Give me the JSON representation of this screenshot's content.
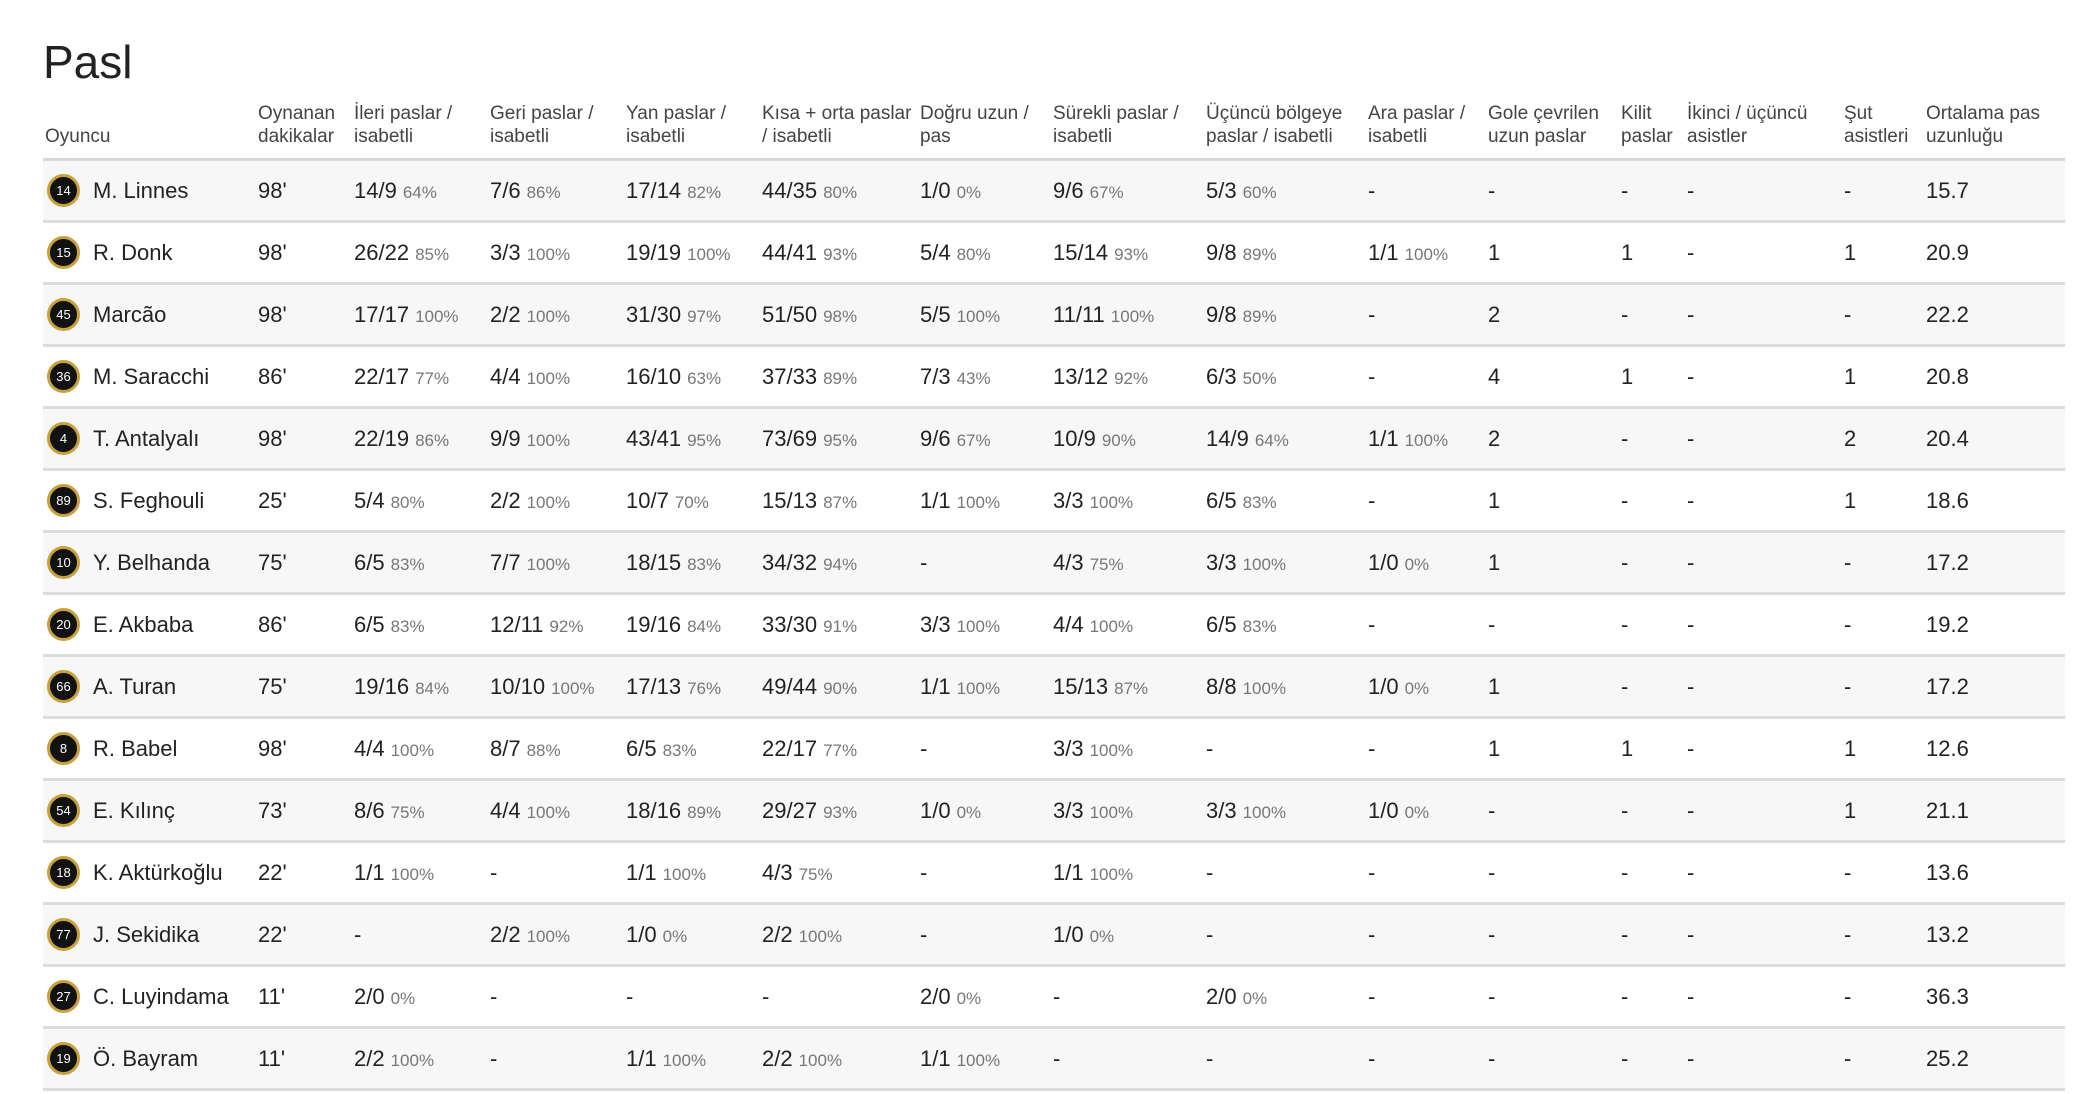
{
  "title": "Pasl",
  "columns": [
    "Oyuncu",
    "Oynanan dakikalar",
    "İleri paslar / isabetli",
    "Geri paslar / isabetli",
    "Yan paslar / isabetli",
    "Kısa + orta paslar / isabetli",
    "Doğru uzun / pas",
    "Sürekli paslar / isabetli",
    "Üçüncü bölgeye paslar / isabetli",
    "Ara paslar / isabetli",
    "Gole çevrilen uzun paslar",
    "Kilit paslar",
    "İkinci / üçüncü asistler",
    "Şut asistleri",
    "Ortalama pas uzunluğu"
  ],
  "rows": [
    {
      "num": "14",
      "name": "M. Linnes",
      "min": "98'",
      "c2": [
        "14/9",
        "64%"
      ],
      "c3": [
        "7/6",
        "86%"
      ],
      "c4": [
        "17/14",
        "82%"
      ],
      "c5": [
        "44/35",
        "80%"
      ],
      "c6": [
        "1/0",
        "0%"
      ],
      "c7": [
        "9/6",
        "67%"
      ],
      "c8": [
        "5/3",
        "60%"
      ],
      "c9": [
        "-",
        ""
      ],
      "c10": "-",
      "c11": "-",
      "c12": "-",
      "c13": "-",
      "c14": "15.7"
    },
    {
      "num": "15",
      "name": "R. Donk",
      "min": "98'",
      "c2": [
        "26/22",
        "85%"
      ],
      "c3": [
        "3/3",
        "100%"
      ],
      "c4": [
        "19/19",
        "100%"
      ],
      "c5": [
        "44/41",
        "93%"
      ],
      "c6": [
        "5/4",
        "80%"
      ],
      "c7": [
        "15/14",
        "93%"
      ],
      "c8": [
        "9/8",
        "89%"
      ],
      "c9": [
        "1/1",
        "100%"
      ],
      "c10": "1",
      "c11": "1",
      "c12": "-",
      "c13": "1",
      "c14": "20.9"
    },
    {
      "num": "45",
      "name": "Marcão",
      "min": "98'",
      "c2": [
        "17/17",
        "100%"
      ],
      "c3": [
        "2/2",
        "100%"
      ],
      "c4": [
        "31/30",
        "97%"
      ],
      "c5": [
        "51/50",
        "98%"
      ],
      "c6": [
        "5/5",
        "100%"
      ],
      "c7": [
        "11/11",
        "100%"
      ],
      "c8": [
        "9/8",
        "89%"
      ],
      "c9": [
        "-",
        ""
      ],
      "c10": "2",
      "c11": "-",
      "c12": "-",
      "c13": "-",
      "c14": "22.2"
    },
    {
      "num": "36",
      "name": "M. Saracchi",
      "min": "86'",
      "c2": [
        "22/17",
        "77%"
      ],
      "c3": [
        "4/4",
        "100%"
      ],
      "c4": [
        "16/10",
        "63%"
      ],
      "c5": [
        "37/33",
        "89%"
      ],
      "c6": [
        "7/3",
        "43%"
      ],
      "c7": [
        "13/12",
        "92%"
      ],
      "c8": [
        "6/3",
        "50%"
      ],
      "c9": [
        "-",
        ""
      ],
      "c10": "4",
      "c11": "1",
      "c12": "-",
      "c13": "1",
      "c14": "20.8"
    },
    {
      "num": "4",
      "name": "T. Antalyalı",
      "min": "98'",
      "c2": [
        "22/19",
        "86%"
      ],
      "c3": [
        "9/9",
        "100%"
      ],
      "c4": [
        "43/41",
        "95%"
      ],
      "c5": [
        "73/69",
        "95%"
      ],
      "c6": [
        "9/6",
        "67%"
      ],
      "c7": [
        "10/9",
        "90%"
      ],
      "c8": [
        "14/9",
        "64%"
      ],
      "c9": [
        "1/1",
        "100%"
      ],
      "c10": "2",
      "c11": "-",
      "c12": "-",
      "c13": "2",
      "c14": "20.4"
    },
    {
      "num": "89",
      "name": "S. Feghouli",
      "min": "25'",
      "c2": [
        "5/4",
        "80%"
      ],
      "c3": [
        "2/2",
        "100%"
      ],
      "c4": [
        "10/7",
        "70%"
      ],
      "c5": [
        "15/13",
        "87%"
      ],
      "c6": [
        "1/1",
        "100%"
      ],
      "c7": [
        "3/3",
        "100%"
      ],
      "c8": [
        "6/5",
        "83%"
      ],
      "c9": [
        "-",
        ""
      ],
      "c10": "1",
      "c11": "-",
      "c12": "-",
      "c13": "1",
      "c14": "18.6"
    },
    {
      "num": "10",
      "name": "Y. Belhanda",
      "min": "75'",
      "c2": [
        "6/5",
        "83%"
      ],
      "c3": [
        "7/7",
        "100%"
      ],
      "c4": [
        "18/15",
        "83%"
      ],
      "c5": [
        "34/32",
        "94%"
      ],
      "c6": [
        "-",
        ""
      ],
      "c7": [
        "4/3",
        "75%"
      ],
      "c8": [
        "3/3",
        "100%"
      ],
      "c9": [
        "1/0",
        "0%"
      ],
      "c10": "1",
      "c11": "-",
      "c12": "-",
      "c13": "-",
      "c14": "17.2"
    },
    {
      "num": "20",
      "name": "E. Akbaba",
      "min": "86'",
      "c2": [
        "6/5",
        "83%"
      ],
      "c3": [
        "12/11",
        "92%"
      ],
      "c4": [
        "19/16",
        "84%"
      ],
      "c5": [
        "33/30",
        "91%"
      ],
      "c6": [
        "3/3",
        "100%"
      ],
      "c7": [
        "4/4",
        "100%"
      ],
      "c8": [
        "6/5",
        "83%"
      ],
      "c9": [
        "-",
        ""
      ],
      "c10": "-",
      "c11": "-",
      "c12": "-",
      "c13": "-",
      "c14": "19.2"
    },
    {
      "num": "66",
      "name": "A. Turan",
      "min": "75'",
      "c2": [
        "19/16",
        "84%"
      ],
      "c3": [
        "10/10",
        "100%"
      ],
      "c4": [
        "17/13",
        "76%"
      ],
      "c5": [
        "49/44",
        "90%"
      ],
      "c6": [
        "1/1",
        "100%"
      ],
      "c7": [
        "15/13",
        "87%"
      ],
      "c8": [
        "8/8",
        "100%"
      ],
      "c9": [
        "1/0",
        "0%"
      ],
      "c10": "1",
      "c11": "-",
      "c12": "-",
      "c13": "-",
      "c14": "17.2"
    },
    {
      "num": "8",
      "name": "R. Babel",
      "min": "98'",
      "c2": [
        "4/4",
        "100%"
      ],
      "c3": [
        "8/7",
        "88%"
      ],
      "c4": [
        "6/5",
        "83%"
      ],
      "c5": [
        "22/17",
        "77%"
      ],
      "c6": [
        "-",
        ""
      ],
      "c7": [
        "3/3",
        "100%"
      ],
      "c8": [
        "-",
        ""
      ],
      "c9": [
        "-",
        ""
      ],
      "c10": "1",
      "c11": "1",
      "c12": "-",
      "c13": "1",
      "c14": "12.6"
    },
    {
      "num": "54",
      "name": "E. Kılınç",
      "min": "73'",
      "c2": [
        "8/6",
        "75%"
      ],
      "c3": [
        "4/4",
        "100%"
      ],
      "c4": [
        "18/16",
        "89%"
      ],
      "c5": [
        "29/27",
        "93%"
      ],
      "c6": [
        "1/0",
        "0%"
      ],
      "c7": [
        "3/3",
        "100%"
      ],
      "c8": [
        "3/3",
        "100%"
      ],
      "c9": [
        "1/0",
        "0%"
      ],
      "c10": "-",
      "c11": "-",
      "c12": "-",
      "c13": "1",
      "c14": "21.1"
    },
    {
      "num": "18",
      "name": "K. Aktürkoğlu",
      "min": "22'",
      "c2": [
        "1/1",
        "100%"
      ],
      "c3": [
        "-",
        ""
      ],
      "c4": [
        "1/1",
        "100%"
      ],
      "c5": [
        "4/3",
        "75%"
      ],
      "c6": [
        "-",
        ""
      ],
      "c7": [
        "1/1",
        "100%"
      ],
      "c8": [
        "-",
        ""
      ],
      "c9": [
        "-",
        ""
      ],
      "c10": "-",
      "c11": "-",
      "c12": "-",
      "c13": "-",
      "c14": "13.6"
    },
    {
      "num": "77",
      "name": "J. Sekidika",
      "min": "22'",
      "c2": [
        "-",
        ""
      ],
      "c3": [
        "2/2",
        "100%"
      ],
      "c4": [
        "1/0",
        "0%"
      ],
      "c5": [
        "2/2",
        "100%"
      ],
      "c6": [
        "-",
        ""
      ],
      "c7": [
        "1/0",
        "0%"
      ],
      "c8": [
        "-",
        ""
      ],
      "c9": [
        "-",
        ""
      ],
      "c10": "-",
      "c11": "-",
      "c12": "-",
      "c13": "-",
      "c14": "13.2"
    },
    {
      "num": "27",
      "name": "C. Luyindama",
      "min": "11'",
      "c2": [
        "2/0",
        "0%"
      ],
      "c3": [
        "-",
        ""
      ],
      "c4": [
        "-",
        ""
      ],
      "c5": [
        "-",
        ""
      ],
      "c6": [
        "2/0",
        "0%"
      ],
      "c7": [
        "-",
        ""
      ],
      "c8": [
        "2/0",
        "0%"
      ],
      "c9": [
        "-",
        ""
      ],
      "c10": "-",
      "c11": "-",
      "c12": "-",
      "c13": "-",
      "c14": "36.3"
    },
    {
      "num": "19",
      "name": "Ö. Bayram",
      "min": "11'",
      "c2": [
        "2/2",
        "100%"
      ],
      "c3": [
        "-",
        ""
      ],
      "c4": [
        "1/1",
        "100%"
      ],
      "c5": [
        "2/2",
        "100%"
      ],
      "c6": [
        "1/1",
        "100%"
      ],
      "c7": [
        "-",
        ""
      ],
      "c8": [
        "-",
        ""
      ],
      "c9": [
        "-",
        ""
      ],
      "c10": "-",
      "c11": "-",
      "c12": "-",
      "c13": "-",
      "c14": "25.2"
    }
  ]
}
